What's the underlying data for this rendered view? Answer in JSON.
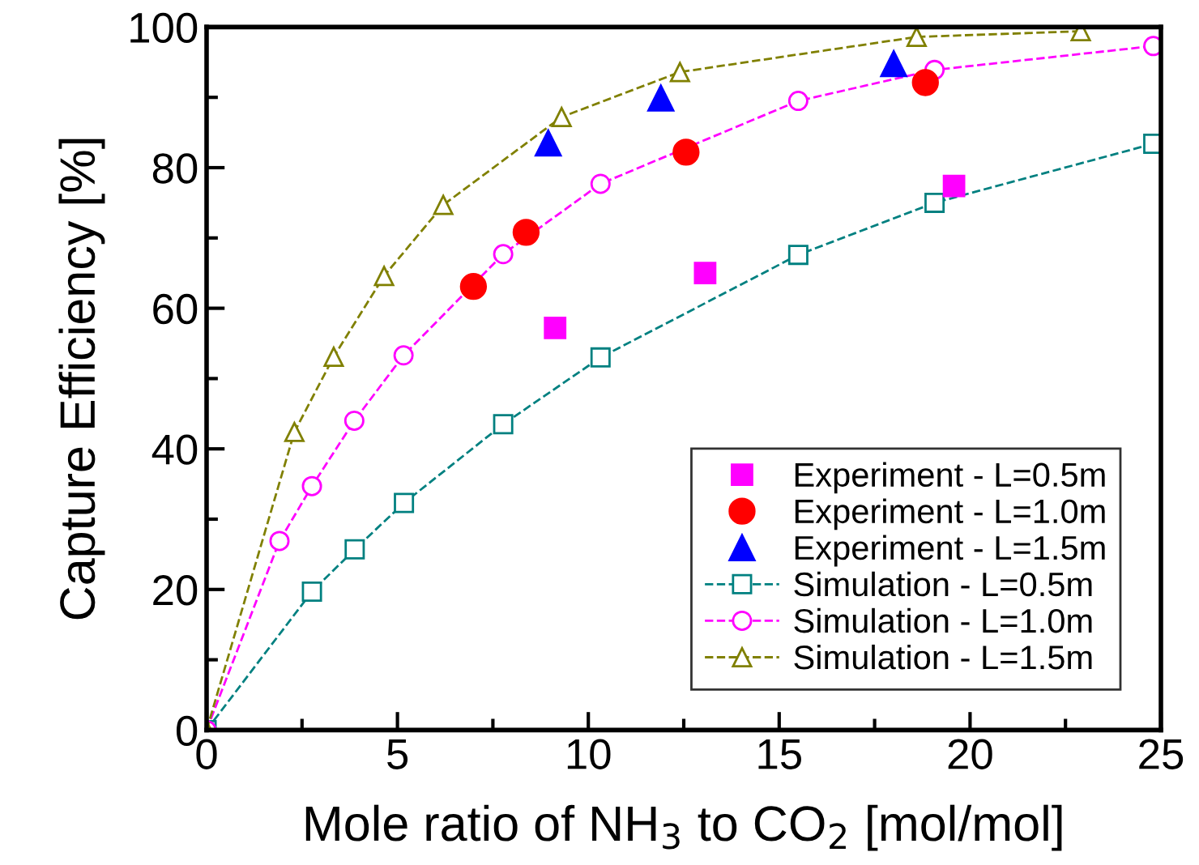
{
  "chart_data": {
    "type": "line",
    "xlabel": "Mole ratio of NH$_{3}$ to CO$_{2}$ [mol/mol]",
    "ylabel": "Capture Efficiency [%]",
    "xlim": [
      0,
      25
    ],
    "xticks": [
      0,
      5,
      10,
      15,
      20,
      25
    ],
    "ylim": [
      0,
      100
    ],
    "yticks": [
      0,
      20,
      40,
      60,
      80,
      100
    ],
    "grid": false,
    "legend": "bottom right",
    "line_style": "dashed",
    "series": [
      {
        "name": "Experiment - L=0.5m",
        "type": "scatter",
        "marker": "square",
        "color": "#ff00ff",
        "x": [
          9.13,
          13.06,
          19.58
        ],
        "values": [
          57.2,
          65.0,
          77.4
        ]
      },
      {
        "name": "Experiment - L=1.0m",
        "type": "scatter",
        "marker": "circle",
        "color": "#ff0000",
        "x": [
          6.99,
          8.37,
          12.56,
          18.83
        ],
        "values": [
          63.1,
          70.8,
          82.2,
          92.1
        ]
      },
      {
        "name": "Experiment - L=1.5m",
        "type": "scatter",
        "marker": "triangle",
        "color": "#0000ff",
        "x": [
          8.95,
          11.9,
          18.0
        ],
        "values": [
          83.5,
          89.9,
          94.8
        ]
      },
      {
        "name": "Simulation - L=0.5m",
        "marker": "square",
        "color": "#008080",
        "x": [
          0,
          2.76,
          3.88,
          5.17,
          7.77,
          10.32,
          15.5,
          19.07,
          24.8
        ],
        "values": [
          0,
          19.7,
          25.7,
          32.3,
          43.5,
          53.0,
          67.6,
          75.0,
          83.4
        ]
      },
      {
        "name": "Simulation - L=1.0m",
        "marker": "circle",
        "color": "#ff00ff",
        "x": [
          0,
          1.91,
          2.76,
          3.87,
          5.16,
          7.77,
          10.32,
          15.5,
          19.07,
          24.8
        ],
        "values": [
          0,
          26.9,
          34.7,
          44.0,
          53.3,
          67.7,
          77.7,
          89.5,
          93.9,
          97.3
        ]
      },
      {
        "name": "Simulation - L=1.5m",
        "marker": "triangle",
        "color": "#808000",
        "x": [
          0,
          2.3,
          3.33,
          4.65,
          6.2,
          9.3,
          12.4,
          18.6,
          22.9
        ],
        "values": [
          0,
          42.4,
          53.1,
          64.6,
          74.7,
          87.2,
          93.6,
          98.6,
          99.4
        ]
      }
    ]
  }
}
